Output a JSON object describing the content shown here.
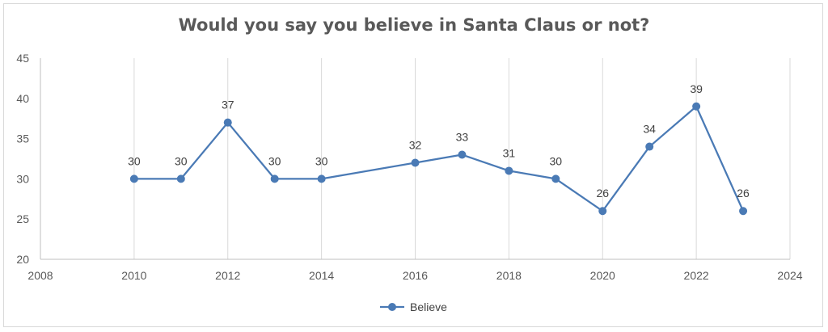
{
  "chart_data": {
    "type": "scatter",
    "mode": "lines+markers",
    "title": "Would you say you believe in Santa Claus or not?",
    "xlabel": "",
    "ylabel": "",
    "xlim": [
      2008,
      2024
    ],
    "ylim": [
      20,
      45
    ],
    "x_ticks": [
      2008,
      2010,
      2012,
      2014,
      2016,
      2018,
      2020,
      2022,
      2024
    ],
    "y_ticks": [
      20,
      25,
      30,
      35,
      40,
      45
    ],
    "grid": "vertical",
    "legend_position": "bottom",
    "series": [
      {
        "name": "Believe",
        "color": "#4a7ab5",
        "x": [
          2010,
          2011,
          2012,
          2013,
          2014,
          2016,
          2017,
          2018,
          2019,
          2020,
          2021,
          2022,
          2023
        ],
        "y": [
          30,
          30,
          37,
          30,
          30,
          32,
          33,
          31,
          30,
          26,
          34,
          39,
          26
        ]
      }
    ]
  }
}
